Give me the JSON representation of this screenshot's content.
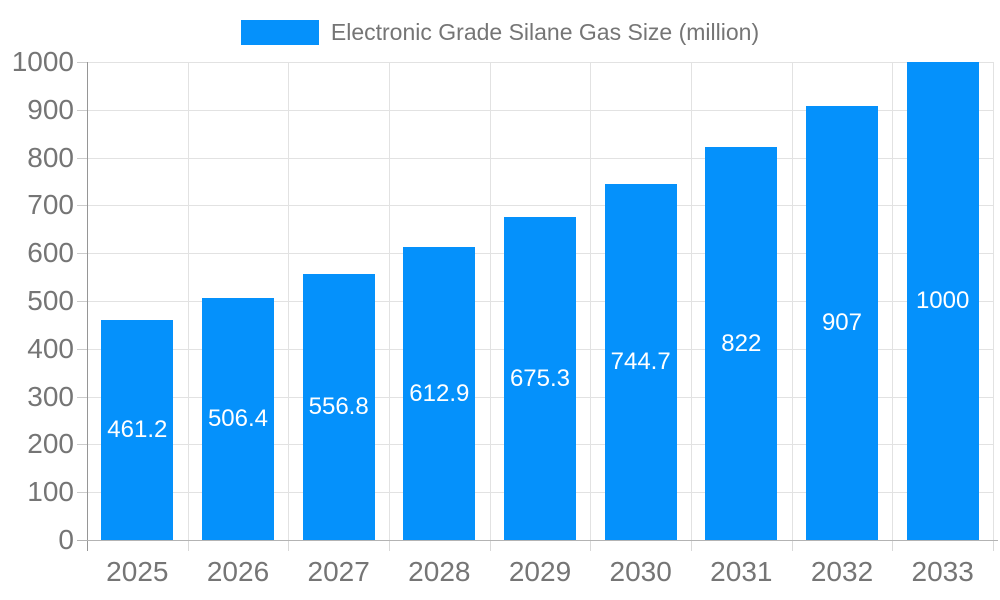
{
  "chart_data": {
    "type": "bar",
    "title": "Electronic Grade Silane Gas Size (million)",
    "categories": [
      "2025",
      "2026",
      "2027",
      "2028",
      "2029",
      "2030",
      "2031",
      "2032",
      "2033"
    ],
    "series": [
      {
        "name": "Electronic Grade Silane Gas Size (million)",
        "values": [
          461.2,
          506.4,
          556.8,
          612.9,
          675.3,
          744.7,
          822,
          907,
          1000
        ]
      }
    ],
    "xlabel": "",
    "ylabel": "",
    "ylim": [
      0,
      1000
    ],
    "ytick_step": 100,
    "yticks": [
      0,
      100,
      200,
      300,
      400,
      500,
      600,
      700,
      800,
      900,
      1000
    ],
    "grid": true,
    "value_labels": "inside-center",
    "legend_position": "top-center",
    "style": {
      "bar_color": "#0591FB",
      "grid_color": "#E2E2E2",
      "tick_color": "#CCCCCC",
      "xtick_color": "#D9D9D9",
      "yaxis_color": "#969696",
      "xaxis_color": "#B3B3B3",
      "text_color": "#757575",
      "value_label_color": "#FFFFFF",
      "background": "#FFFFFF"
    }
  }
}
